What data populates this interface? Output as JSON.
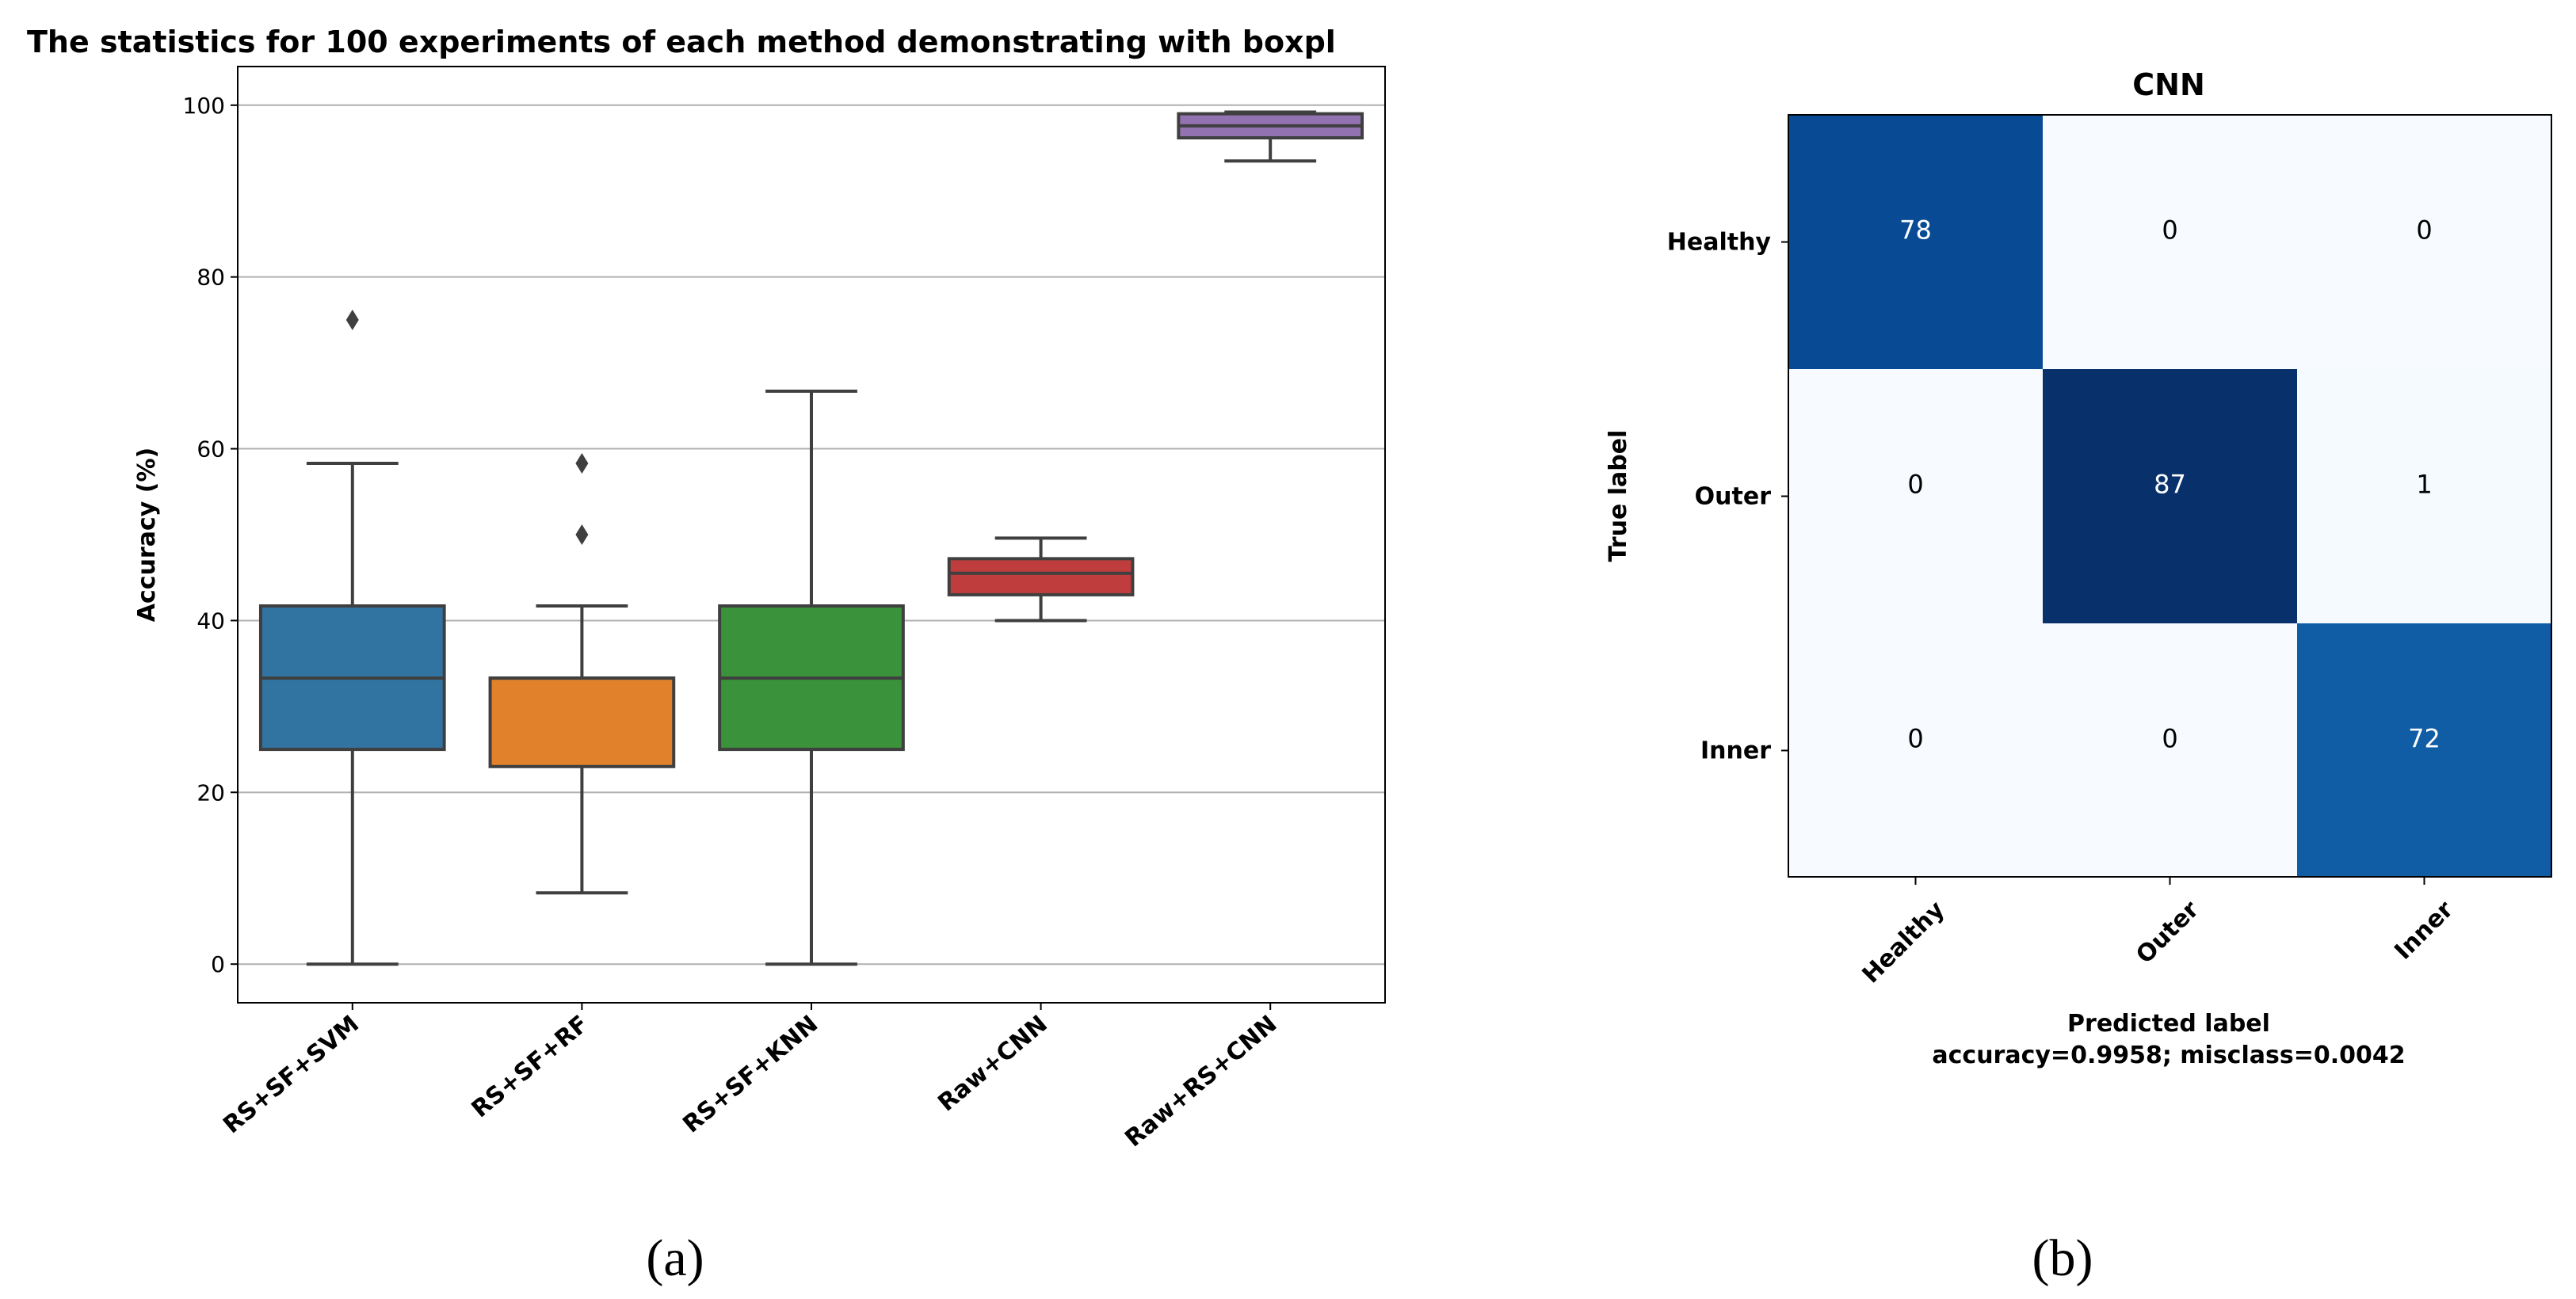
{
  "chart_data": [
    {
      "type": "box",
      "title": "The statistics for 100 experiments of each method demonstrating with boxpl",
      "xlabel": "",
      "ylabel": "Accuracy (%)",
      "ylim": [
        -4.5,
        104.5
      ],
      "yticks": [
        "0",
        "20",
        "40",
        "60",
        "80",
        "100"
      ],
      "grid": "horizontal",
      "categories": [
        "RS+SF+SVM",
        "RS+SF+RF",
        "RS+SF+KNN",
        "Raw+CNN",
        "Raw+RS+CNN"
      ],
      "boxes": [
        {
          "name": "RS+SF+SVM",
          "min": 0,
          "q1": 25,
          "median": 33.3,
          "q3": 41.7,
          "max": 58.3,
          "outliers": [
            75
          ],
          "color": "#3274a1"
        },
        {
          "name": "RS+SF+RF",
          "min": 8.3,
          "q1": 23,
          "median": 33.3,
          "q3": 33.3,
          "max": 41.7,
          "outliers": [
            50,
            58.3
          ],
          "color": "#e1812c"
        },
        {
          "name": "RS+SF+KNN",
          "min": 0,
          "q1": 25,
          "median": 33.3,
          "q3": 41.7,
          "max": 66.7,
          "outliers": [],
          "color": "#3a923a"
        },
        {
          "name": "Raw+CNN",
          "min": 40,
          "q1": 43,
          "median": 45.5,
          "q3": 47.2,
          "max": 49.6,
          "outliers": [],
          "color": "#c03d3e"
        },
        {
          "name": "Raw+RS+CNN",
          "min": 93.5,
          "q1": 96.2,
          "median": 97.6,
          "q3": 99,
          "max": 99.2,
          "outliers": [],
          "color": "#9372b2"
        }
      ],
      "subfigure_label": "(a)"
    },
    {
      "type": "heatmap",
      "title": "CNN",
      "xlabel": "Predicted label",
      "ylabel": "True label",
      "caption": "accuracy=0.9958; misclass=0.0042",
      "row_labels": [
        "Healthy",
        "Outer",
        "Inner"
      ],
      "col_labels": [
        "Healthy",
        "Outer",
        "Inner"
      ],
      "matrix": [
        [
          78,
          0,
          0
        ],
        [
          0,
          87,
          1
        ],
        [
          0,
          0,
          72
        ]
      ],
      "colormap": "Blues",
      "subfigure_label": "(b)"
    }
  ]
}
